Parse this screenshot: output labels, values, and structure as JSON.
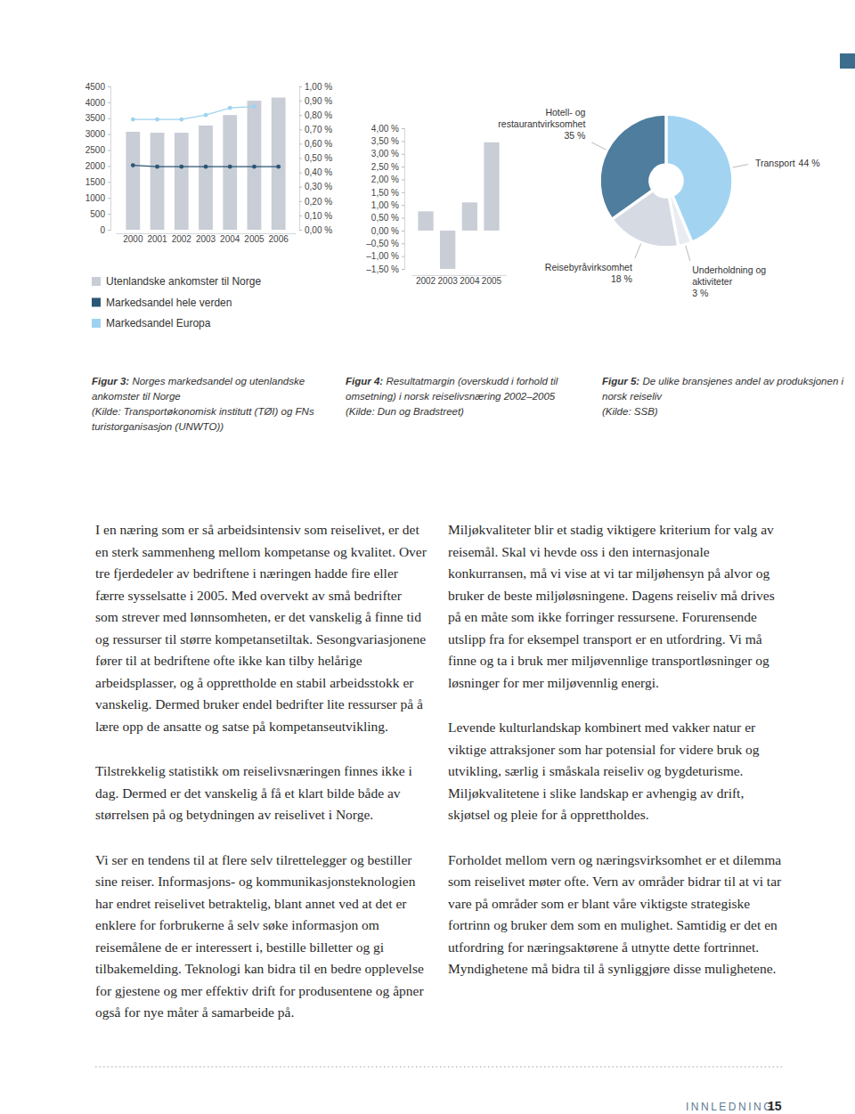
{
  "chart_data": [
    {
      "type": "bar",
      "categories": [
        "2000",
        "2001",
        "2002",
        "2003",
        "2004",
        "2005",
        "2006"
      ],
      "series": [
        {
          "name": "Utenlandske ankomster til Norge",
          "type": "bar",
          "color": "#c8cdd6",
          "values": [
            3075,
            3045,
            3045,
            3270,
            3600,
            4050,
            4150
          ]
        },
        {
          "name": "Markedsandel hele verden",
          "type": "line",
          "axis": "y2",
          "marker": "circle",
          "color": "#2b5675",
          "values": [
            0.45,
            0.44,
            0.44,
            0.44,
            0.44,
            0.44,
            0.44
          ]
        },
        {
          "name": "Markedsandel Europa",
          "type": "line",
          "axis": "y2",
          "marker": "circle",
          "color": "#9dd3f0",
          "values": [
            0.77,
            0.77,
            0.77,
            0.8,
            0.85,
            0.86,
            null
          ]
        }
      ],
      "ylim": [
        0,
        4500
      ],
      "yticks": [
        0,
        500,
        1000,
        1500,
        2000,
        2500,
        3000,
        3500,
        4000,
        4500
      ],
      "y2lim": [
        0,
        1
      ],
      "y2ticks": [
        {
          "value": 0,
          "label": "0,00 %"
        },
        {
          "value": 0.1,
          "label": "0,10 %"
        },
        {
          "value": 0.2,
          "label": "0,20 %"
        },
        {
          "value": 0.3,
          "label": "0,30 %"
        },
        {
          "value": 0.4,
          "label": "0,40 %"
        },
        {
          "value": 0.5,
          "label": "0,50 %"
        },
        {
          "value": 0.6,
          "label": "0,60 %"
        },
        {
          "value": 0.7,
          "label": "0,70 %"
        },
        {
          "value": 0.8,
          "label": "0,80 %"
        },
        {
          "value": 0.9,
          "label": "0,90 %"
        },
        {
          "value": 1,
          "label": "1,00 %"
        }
      ],
      "legend": "bottom"
    },
    {
      "type": "bar",
      "categories": [
        "2002",
        "2003",
        "2004",
        "2005"
      ],
      "values": [
        0.75,
        -1.5,
        1.1,
        3.45
      ],
      "color": "#c8cdd6",
      "ylim": [
        -1.5,
        4
      ],
      "yticks": [
        {
          "value": -1.5,
          "label": "–1,50 %"
        },
        {
          "value": -1,
          "label": "–1,00 %"
        },
        {
          "value": -0.5,
          "label": "–0,50 %"
        },
        {
          "value": 0,
          "label": "0,00 %"
        },
        {
          "value": 0.5,
          "label": "0,50 %"
        },
        {
          "value": 1,
          "label": "1,00 %"
        },
        {
          "value": 1.5,
          "label": "1,50 %"
        },
        {
          "value": 2,
          "label": "2,00 %"
        },
        {
          "value": 2.5,
          "label": "2,50 %"
        },
        {
          "value": 3,
          "label": "3,00 %"
        },
        {
          "value": 3.5,
          "label": "3,50 %"
        },
        {
          "value": 4,
          "label": "4,00 %"
        }
      ]
    },
    {
      "type": "pie",
      "categories": [
        "Transport",
        "Underholdning og aktiviteter",
        "Reisebyråvirksomhet",
        "Hotell- og restaurantvirksomhet"
      ],
      "values": [
        44,
        3,
        18,
        35
      ],
      "value_labels": [
        "44 %",
        "3 %",
        "18 %",
        "35 %"
      ],
      "colors": [
        "#a2d4f2",
        "#e9ecf1",
        "#d6dbe3",
        "#4f7d9e"
      ],
      "data_labels": true
    }
  ],
  "figures": [
    {
      "label": "Figur 3:",
      "text": "Norges markedsandel og utenlandske ankomster til Norge",
      "source": "(Kilde: Transportøkonomisk institutt (TØI) og FNs turistorganisasjon (UNWTO))"
    },
    {
      "label": "Figur 4:",
      "text": "Resultatmargin (overskudd i forhold til omsetning) i norsk reiselivsnæring 2002–2005",
      "source": "(Kilde: Dun og Bradstreet)"
    },
    {
      "label": "Figur 5:",
      "text": "De ulike bransjenes andel av produksjonen i norsk reiseliv",
      "source": "(Kilde: SSB)"
    }
  ],
  "body": {
    "left": [
      "I en næring som er så arbeidsintensiv som reiselivet, er det en sterk sammenheng mellom kompetanse og kvalitet. Over tre fjerdedeler av bedriftene i næringen hadde fire eller færre sysselsatte i 2005. Med overvekt av små bedrifter som strever med lønnsomheten, er det vanskelig å finne tid og ressurser til større kompetansetiltak. Sesongvariasjonene fører til at bedriftene ofte ikke kan tilby helårige arbeidsplasser, og å opprettholde en stabil arbeidsstokk er vanskelig. Dermed bruker endel bedrifter lite ressurser på å lære opp de ansatte og satse på kompetanseutvikling.",
      "Tilstrekkelig statistikk om reiselivsnæringen finnes ikke i dag. Dermed er det vanskelig å få et klart bilde både av størrelsen på og betydningen av reiselivet i Norge.",
      "Vi ser en tendens til at flere selv tilrettelegger og bestiller sine reiser. Informasjons- og kommunikasjonsteknologien har endret reiselivet betraktelig, blant annet ved at det er enklere for forbrukerne å selv søke informasjon om reisemålene de er interessert i, bestille billetter og gi tilbakemelding. Teknologi kan bidra til en bedre opplevelse for gjestene og mer effektiv drift for produsentene og åpner også for nye måter å samarbeide på."
    ],
    "right": [
      "Miljøkvaliteter blir et stadig viktigere kriterium for valg av reisemål. Skal vi hevde oss i den internasjonale konkurransen, må vi vise at vi tar miljøhensyn på alvor og bruker de beste miljøløsningene. Dagens reiseliv må drives på en måte som ikke forringer ressursene. Forurensende utslipp fra for eksempel transport er en utfordring. Vi må finne og ta i bruk mer miljøvennlige transportløsninger og løsninger for mer miljøvennlig energi.",
      "Levende kulturlandskap kombinert med vakker natur er viktige attraksjoner som har potensial for videre bruk og utvikling, særlig i småskala reiseliv og bygdeturisme. Miljøkvalitetene i slike landskap er avhengig av drift, skjøtsel og pleie for å opprettholdes.",
      "Forholdet mellom vern og næringsvirksomhet er et dilemma som reiselivet møter ofte. Vern av områder bidrar til at vi tar vare på områder som er blant våre viktigste strategiske fortrinn og bruker dem som en mulighet. Samtidig er det en utfordring for næringsaktørene å utnytte dette fortrinnet. Myndighetene må bidra til å synliggjøre disse mulighetene."
    ]
  },
  "footer": {
    "section": "INNLEDNING",
    "page": "15"
  }
}
